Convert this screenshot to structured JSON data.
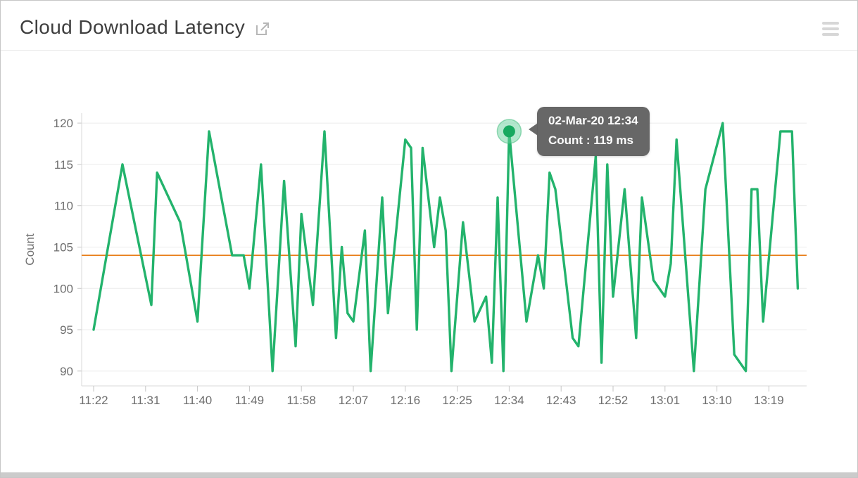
{
  "header": {
    "title": "Cloud Download Latency",
    "title_icon": "external-link",
    "menu_icon": "hamburger"
  },
  "tooltip": {
    "line1": "02-Mar-20 12:34",
    "line2": "Count : 119 ms"
  },
  "chart_data": {
    "type": "line",
    "title": "Cloud Download Latency",
    "xlabel": "",
    "ylabel": "Count",
    "unit": "ms",
    "ylim": [
      88,
      121
    ],
    "yticks": [
      90,
      95,
      100,
      105,
      110,
      115,
      120
    ],
    "xticks": [
      "11:22",
      "11:31",
      "11:40",
      "11:49",
      "11:58",
      "12:07",
      "12:16",
      "12:25",
      "12:34",
      "12:43",
      "12:52",
      "13:01",
      "13:10",
      "13:19"
    ],
    "grid": "horizontal",
    "legend": "none",
    "line_color": "#23b36c",
    "grid_color": "#ececec",
    "axis_color": "#d9d9d9",
    "tick_color": "#c6c6c6",
    "label_color": "#6e6e6e",
    "threshold": {
      "value": 104,
      "color": "#e87d18"
    },
    "highlight": {
      "time": "12:34",
      "value": 119
    },
    "series": [
      {
        "name": "Count",
        "points": [
          [
            "11:22",
            95
          ],
          [
            "11:27",
            115
          ],
          [
            "11:32",
            98
          ],
          [
            "11:33",
            114
          ],
          [
            "11:37",
            108
          ],
          [
            "11:40",
            96
          ],
          [
            "11:42",
            119
          ],
          [
            "11:46",
            104
          ],
          [
            "11:48",
            104
          ],
          [
            "11:49",
            100
          ],
          [
            "11:51",
            115
          ],
          [
            "11:53",
            90
          ],
          [
            "11:55",
            113
          ],
          [
            "11:57",
            93
          ],
          [
            "11:58",
            109
          ],
          [
            "12:00",
            98
          ],
          [
            "12:02",
            119
          ],
          [
            "12:04",
            94
          ],
          [
            "12:05",
            105
          ],
          [
            "12:06",
            97
          ],
          [
            "12:07",
            96
          ],
          [
            "12:09",
            107
          ],
          [
            "12:10",
            90
          ],
          [
            "12:12",
            111
          ],
          [
            "12:13",
            97
          ],
          [
            "12:16",
            118
          ],
          [
            "12:17",
            117
          ],
          [
            "12:18",
            95
          ],
          [
            "12:19",
            117
          ],
          [
            "12:21",
            105
          ],
          [
            "12:22",
            111
          ],
          [
            "12:23",
            107
          ],
          [
            "12:24",
            90
          ],
          [
            "12:26",
            108
          ],
          [
            "12:28",
            96
          ],
          [
            "12:30",
            99
          ],
          [
            "12:31",
            91
          ],
          [
            "12:32",
            111
          ],
          [
            "12:33",
            90
          ],
          [
            "12:34",
            119
          ],
          [
            "12:37",
            96
          ],
          [
            "12:39",
            104
          ],
          [
            "12:40",
            100
          ],
          [
            "12:41",
            114
          ],
          [
            "12:42",
            112
          ],
          [
            "12:45",
            94
          ],
          [
            "12:46",
            93
          ],
          [
            "12:49",
            116
          ],
          [
            "12:50",
            91
          ],
          [
            "12:51",
            115
          ],
          [
            "12:52",
            99
          ],
          [
            "12:54",
            112
          ],
          [
            "12:56",
            94
          ],
          [
            "12:57",
            111
          ],
          [
            "12:59",
            101
          ],
          [
            "13:01",
            99
          ],
          [
            "13:02",
            103
          ],
          [
            "13:03",
            118
          ],
          [
            "13:06",
            90
          ],
          [
            "13:08",
            112
          ],
          [
            "13:11",
            120
          ],
          [
            "13:13",
            92
          ],
          [
            "13:15",
            90
          ],
          [
            "13:16",
            112
          ],
          [
            "13:17",
            112
          ],
          [
            "13:18",
            96
          ],
          [
            "13:21",
            119
          ],
          [
            "13:23",
            119
          ],
          [
            "13:24",
            100
          ]
        ]
      }
    ]
  }
}
